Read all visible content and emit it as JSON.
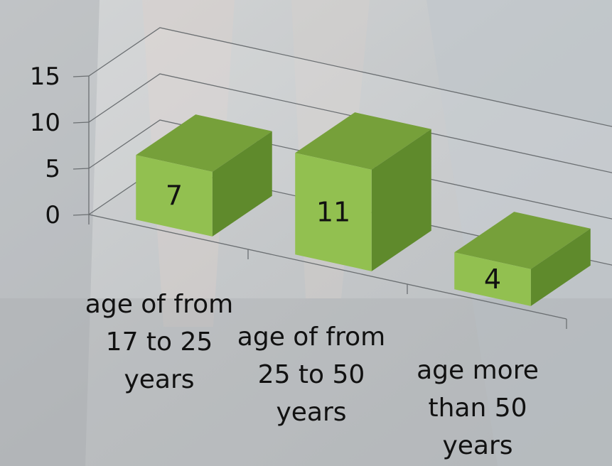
{
  "chart_data": {
    "type": "bar",
    "style": "3d-column",
    "categories": [
      [
        "age of from",
        "17 to 25",
        "years"
      ],
      [
        "age of from",
        "25 to 50",
        "years"
      ],
      [
        "age more",
        "than 50",
        "years"
      ]
    ],
    "values": [
      7,
      11,
      4
    ],
    "data_labels": [
      "7",
      "11",
      "4"
    ],
    "ylim": [
      0,
      15
    ],
    "yticks": [
      "0",
      "5",
      "10",
      "15"
    ],
    "grid": true,
    "legend": "none",
    "title": "",
    "xlabel": "",
    "ylabel": "",
    "colors": {
      "bar_front": "#92c050",
      "bar_top": "#76a03a",
      "bar_side": "#5f8a2c",
      "gridline": "#6b6f72"
    }
  }
}
